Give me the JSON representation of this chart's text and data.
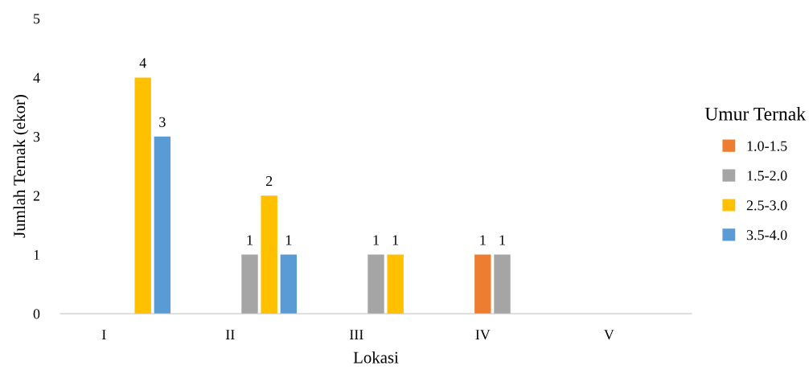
{
  "chart_data": {
    "type": "bar",
    "xlabel": "Lokasi",
    "ylabel": "Jumlah Ternak (ekor)",
    "legend_title": "Umur Ternak",
    "categories": [
      "I",
      "II",
      "III",
      "IV",
      "V"
    ],
    "series": [
      {
        "name": "1.0-1.5",
        "color": "#ed7d31",
        "values": [
          null,
          null,
          null,
          1,
          null
        ]
      },
      {
        "name": "1.5-2.0",
        "color": "#a5a5a5",
        "values": [
          null,
          1,
          1,
          1,
          null
        ]
      },
      {
        "name": "2.5-3.0",
        "color": "#ffc000",
        "values": [
          4,
          2,
          1,
          null,
          null
        ]
      },
      {
        "name": "3.5-4.0",
        "color": "#5b9bd5",
        "values": [
          3,
          1,
          null,
          null,
          null
        ]
      }
    ],
    "ylim": [
      0,
      5
    ],
    "yticks": [
      0,
      1,
      2,
      3,
      4,
      5
    ],
    "grid": false,
    "legend": "right",
    "data_labels": true
  }
}
